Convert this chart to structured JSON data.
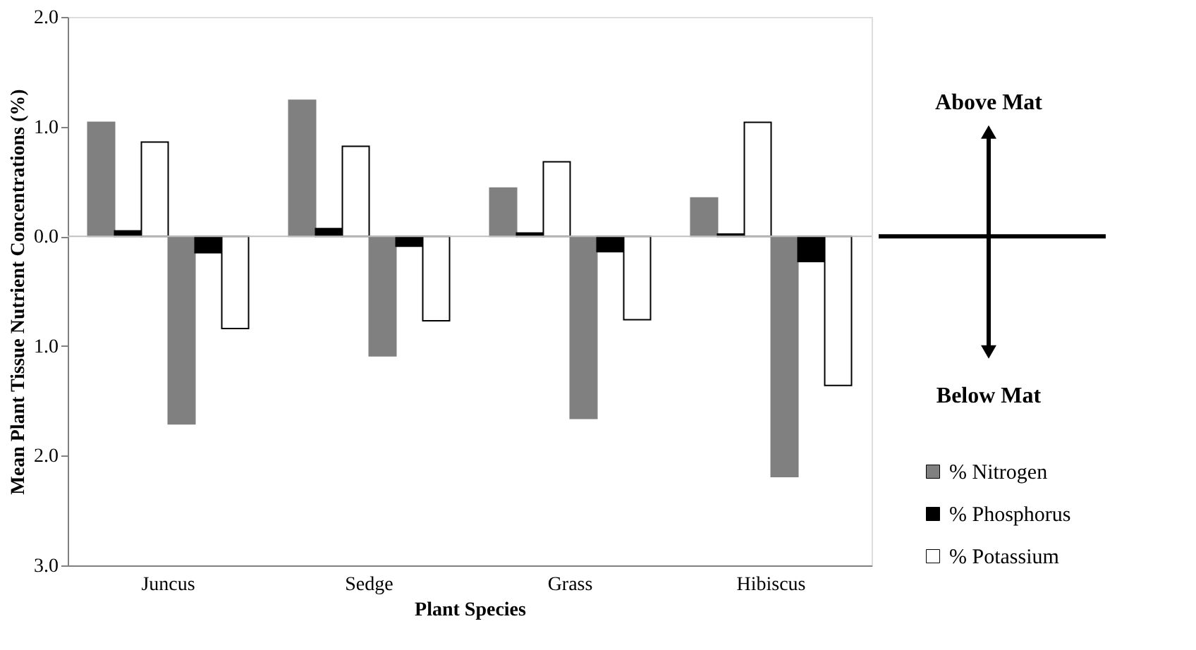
{
  "chart_data": {
    "type": "bar",
    "categories": [
      "Juncus",
      "Sedge",
      "Grass",
      "Hibiscus"
    ],
    "series": [
      {
        "name": "% Nitrogen",
        "color": "#808080",
        "values": [
          1.04,
          1.24,
          0.44,
          0.35
        ]
      },
      {
        "name": "% Phosphorus",
        "color": "#000000",
        "values": [
          0.05,
          0.07,
          0.03,
          0.02
        ]
      },
      {
        "name": "% Potassium",
        "color": "#ffffff",
        "values": [
          0.86,
          0.82,
          0.68,
          1.04
        ]
      },
      {
        "color": "#808080",
        "values": [
          -1.71,
          -1.09,
          -1.66,
          -2.19
        ]
      },
      {
        "color": "#000000",
        "values": [
          -0.15,
          -0.09,
          -0.14,
          -0.23
        ]
      },
      {
        "color": "#ffffff",
        "values": [
          -0.84,
          -0.77,
          -0.76,
          -1.36
        ]
      }
    ],
    "xlabel": "Plant Species",
    "ylabel": "Mean Plant Tissue Nutrient Concentrations (%)",
    "ylim": [
      -3,
      2
    ],
    "yticks": [
      {
        "value": 2,
        "label": "2.0"
      },
      {
        "value": 1,
        "label": "1.0"
      },
      {
        "value": 0,
        "label": "0.0"
      },
      {
        "value": -1,
        "label": "1.0"
      },
      {
        "value": -2,
        "label": "2.0"
      },
      {
        "value": -3,
        "label": "3.0"
      }
    ],
    "ref_lines": [
      {
        "axis": "y",
        "value": 0,
        "color": "#bfbfbf"
      }
    ],
    "annotations": [
      "Above Mat",
      "Below Mat"
    ],
    "legend": "right",
    "grid": false
  }
}
